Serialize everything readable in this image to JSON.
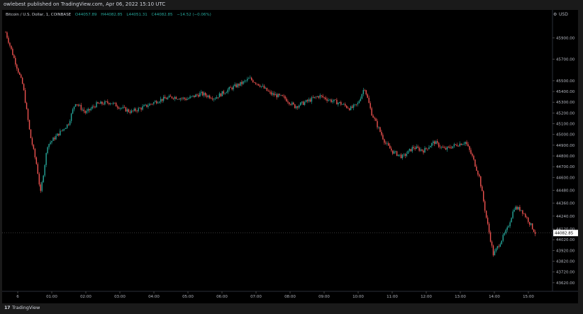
{
  "header": {
    "publish_line": "owlebest published on TradingView.com, Apr 06, 2022 15:10 UTC"
  },
  "legend": {
    "symbol": "Bitcoin / U.S. Dollar, 1, COINBASE",
    "open": "O44057.89",
    "high": "H44082.85",
    "low": "L44051.31",
    "close": "C44082.85",
    "change": "−14.52 (−0.06%)"
  },
  "toolbar": {
    "currency": "USD"
  },
  "footer": {
    "brand": "TradingView",
    "logo": "17"
  },
  "colors": {
    "background": "#000000",
    "up": "#26a69a",
    "down": "#ef5350",
    "axis_text": "#b2b5be",
    "price_tag": "#ffffff"
  },
  "chart_data": {
    "type": "candlestick",
    "title": "Bitcoin / U.S. Dollar, 1, COINBASE",
    "xlabel": "",
    "ylabel": "",
    "currency": "USD",
    "x_ticks": [
      "6",
      "01:00",
      "02:00",
      "03:00",
      "04:00",
      "05:00",
      "06:00",
      "07:00",
      "08:00",
      "09:00",
      "10:00",
      "11:00",
      "12:00",
      "13:00",
      "14:00",
      "15:00"
    ],
    "y_ticks": [
      45900,
      45700,
      45500,
      45400,
      45300,
      45200,
      45100,
      45000,
      44900,
      44800,
      44700,
      44600,
      44480,
      44360,
      44240,
      44120,
      44020,
      43920,
      43820,
      43720,
      43620
    ],
    "y_tick_labels": [
      "45900.00",
      "45700.00",
      "45500.00",
      "45400.00",
      "45300.00",
      "45200.00",
      "45100.00",
      "45000.00",
      "44900.00",
      "44800.00",
      "44700.00",
      "44600.00",
      "44480.00",
      "44360.00",
      "44240.00",
      "44120.00",
      "44020.00",
      "43920.00",
      "43820.00",
      "43720.00",
      "43620.00"
    ],
    "ylim": [
      43540,
      46080
    ],
    "last_price": 44082.85,
    "last_price_label": "44082.85",
    "grid": false,
    "price_path": [
      [
        0.0,
        45950
      ],
      [
        0.25,
        45700
      ],
      [
        0.5,
        45450
      ],
      [
        0.7,
        45000
      ],
      [
        0.9,
        44700
      ],
      [
        1.0,
        44450
      ],
      [
        1.2,
        44900
      ],
      [
        1.5,
        45000
      ],
      [
        1.8,
        45100
      ],
      [
        2.0,
        45300
      ],
      [
        2.3,
        45200
      ],
      [
        2.6,
        45280
      ],
      [
        3.0,
        45300
      ],
      [
        3.3,
        45250
      ],
      [
        3.6,
        45210
      ],
      [
        4.0,
        45260
      ],
      [
        4.4,
        45320
      ],
      [
        4.8,
        45350
      ],
      [
        5.2,
        45330
      ],
      [
        5.6,
        45380
      ],
      [
        6.0,
        45340
      ],
      [
        6.4,
        45420
      ],
      [
        6.8,
        45480
      ],
      [
        7.0,
        45520
      ],
      [
        7.3,
        45460
      ],
      [
        7.6,
        45380
      ],
      [
        8.0,
        45340
      ],
      [
        8.3,
        45260
      ],
      [
        8.6,
        45300
      ],
      [
        9.0,
        45360
      ],
      [
        9.3,
        45320
      ],
      [
        9.6,
        45290
      ],
      [
        9.9,
        45240
      ],
      [
        10.1,
        45280
      ],
      [
        10.3,
        45440
      ],
      [
        10.5,
        45200
      ],
      [
        10.7,
        45060
      ],
      [
        10.9,
        44920
      ],
      [
        11.1,
        44840
      ],
      [
        11.4,
        44790
      ],
      [
        11.7,
        44880
      ],
      [
        12.0,
        44850
      ],
      [
        12.3,
        44930
      ],
      [
        12.6,
        44860
      ],
      [
        12.9,
        44900
      ],
      [
        13.2,
        44930
      ],
      [
        13.4,
        44790
      ],
      [
        13.6,
        44600
      ],
      [
        13.8,
        44220
      ],
      [
        14.0,
        43880
      ],
      [
        14.2,
        44000
      ],
      [
        14.4,
        44120
      ],
      [
        14.6,
        44320
      ],
      [
        14.8,
        44300
      ],
      [
        15.0,
        44200
      ],
      [
        15.2,
        44083
      ]
    ]
  }
}
